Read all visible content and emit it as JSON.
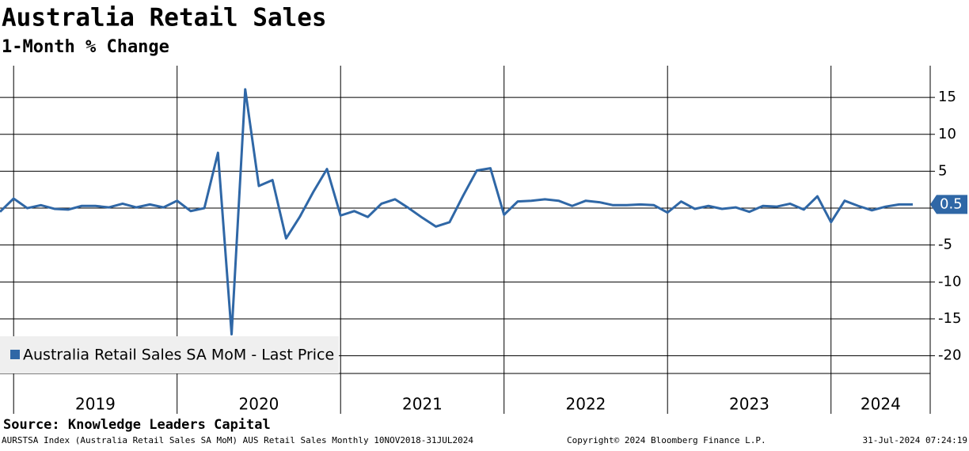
{
  "chart_data": {
    "type": "line",
    "title": "Australia Retail Sales",
    "subtitle": "1-Month % Change",
    "source": "Source: Knowledge Leaders Capital",
    "footer_left": "AURSTSA Index (Australia Retail Sales SA MoM) AUS Retail Sales  Monthly 10NOV2018-31JUL2024",
    "footer_center": "Copyright© 2024 Bloomberg Finance L.P.",
    "footer_right": "31-Jul-2024 07:24:19",
    "year_labels": [
      "2019",
      "2020",
      "2021",
      "2022",
      "2023",
      "2024"
    ],
    "categories": [
      null,
      null,
      null,
      null,
      null,
      null,
      null,
      null,
      null,
      null,
      null,
      null,
      null,
      null,
      null,
      null,
      null,
      null,
      null,
      null,
      null,
      null,
      null,
      null,
      null,
      null,
      null,
      null,
      null,
      null,
      null,
      null,
      null,
      null,
      null,
      null,
      null,
      null,
      null,
      null,
      null,
      null,
      null,
      null,
      null,
      null,
      null,
      null,
      null,
      null,
      null,
      null,
      null,
      null,
      null,
      null,
      null,
      null,
      null,
      null,
      null,
      null,
      null,
      null,
      null,
      null,
      null,
      null
    ],
    "series": [
      {
        "name": "Australia Retail Sales SA MoM - Last Price",
        "color": "#2f67a6",
        "values": [
          -0.5,
          1.3,
          0.0,
          0.4,
          -0.1,
          -0.2,
          0.3,
          0.3,
          0.1,
          0.6,
          0.1,
          0.5,
          0.1,
          1.0,
          -0.4,
          0.0,
          7.5,
          -17.1,
          16.1,
          3.0,
          3.8,
          -4.1,
          -1.2,
          2.2,
          5.3,
          -1.0,
          -0.4,
          -1.2,
          0.6,
          1.2,
          0.0,
          -1.3,
          -2.5,
          -1.9,
          1.7,
          5.1,
          5.4,
          -0.9,
          0.9,
          1.0,
          1.2,
          1.0,
          0.3,
          1.0,
          0.8,
          0.4,
          0.4,
          0.5,
          0.4,
          -0.6,
          0.9,
          -0.1,
          0.3,
          -0.1,
          0.1,
          -0.5,
          0.3,
          0.2,
          0.6,
          -0.2,
          1.6,
          -1.9,
          1.0,
          0.3,
          -0.3,
          0.2,
          0.5,
          0.5
        ]
      }
    ],
    "ylim": [
      -22.4,
      19.3
    ],
    "yticks": [
      -20,
      -15,
      -10,
      -5,
      0,
      5,
      10,
      15
    ],
    "grid": true,
    "legend": "lower-left"
  }
}
